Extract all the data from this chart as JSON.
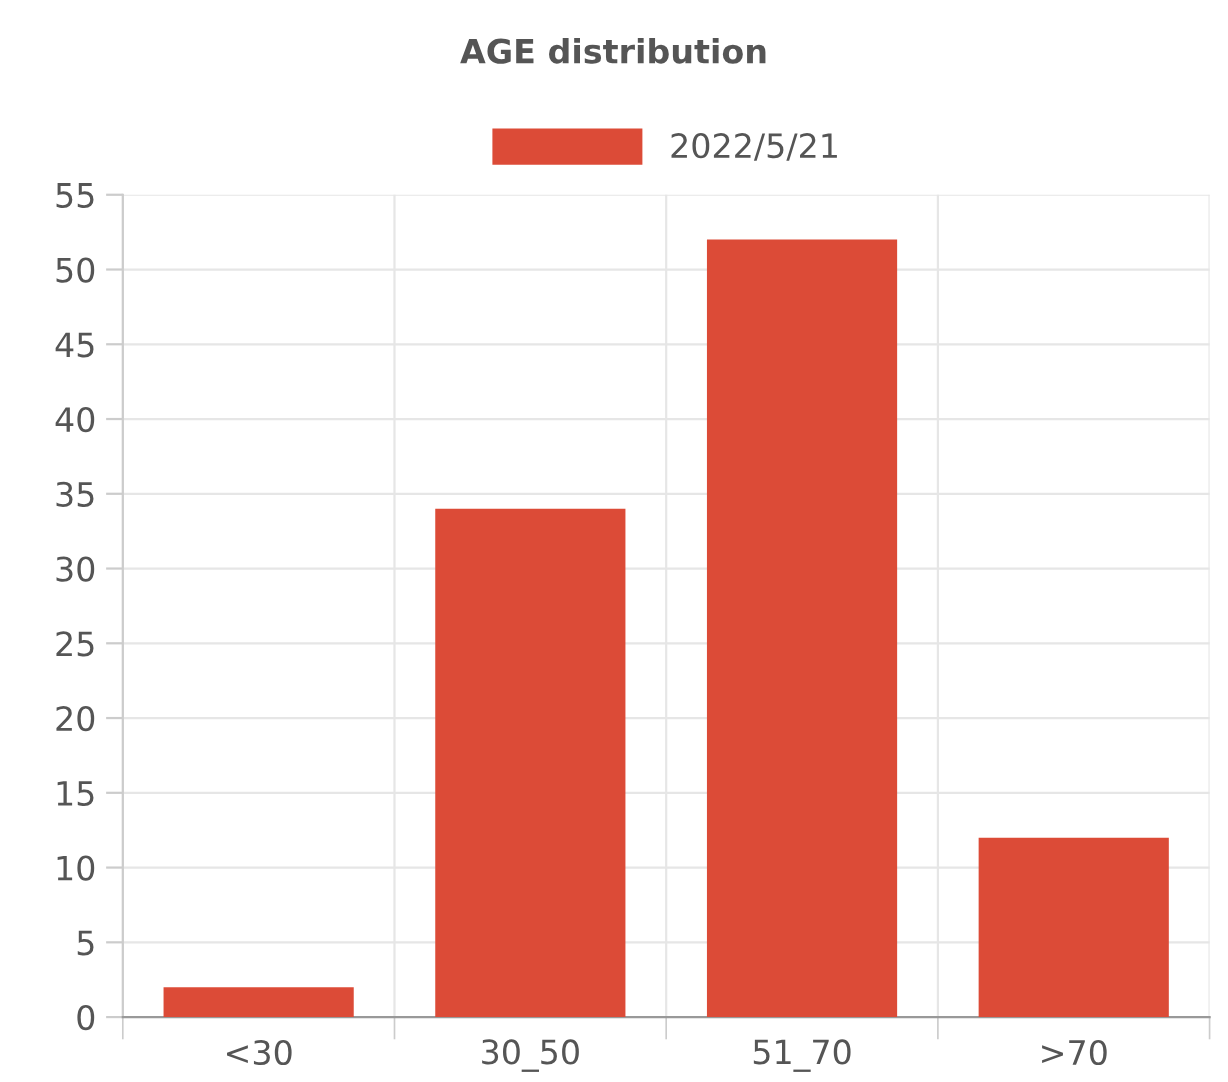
{
  "chart_data": {
    "type": "bar",
    "title": "AGE distribution",
    "categories": [
      "<30",
      "30_50",
      "51_70",
      ">70"
    ],
    "series": [
      {
        "name": "2022/5/21",
        "color": "#dc4b37",
        "values": [
          2,
          34,
          52,
          12
        ]
      }
    ],
    "ylim": [
      0,
      55
    ],
    "yticks": [
      0,
      5,
      10,
      15,
      20,
      25,
      30,
      35,
      40,
      45,
      50,
      55
    ],
    "grid": true,
    "legend": "top"
  }
}
